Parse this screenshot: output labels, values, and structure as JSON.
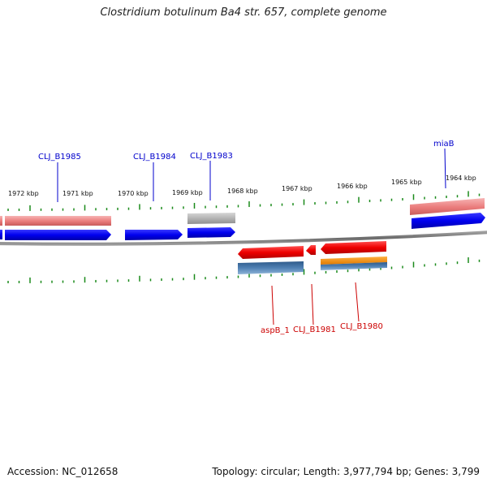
{
  "title": "Clostridium botulinum Ba4 str. 657, complete genome",
  "colors": {
    "label_top": "#0000cc",
    "label_bottom": "#cc0000",
    "tick": "#1a8a1a",
    "backbone": "#777777",
    "forward_cds": "#0000ee",
    "forward_pink": "#ee8080",
    "reverse_red": "#ee0000",
    "reverse_blue": "#4a78a8",
    "gray_feature": "#b0b0b0",
    "orange_feature": "#ff9900"
  },
  "kbp_labels": [
    "1972 kbp",
    "1971 kbp",
    "1970 kbp",
    "1969 kbp",
    "1968 kbp",
    "1967 kbp",
    "1966 kbp",
    "1965 kbp",
    "1964 kbp"
  ],
  "top_genes": [
    "CLJ_B1985",
    "CLJ_B1984",
    "CLJ_B1983",
    "miaB"
  ],
  "bottom_genes": [
    "aspB_1",
    "CLJ_B1981",
    "CLJ_B1980"
  ],
  "footer": {
    "accession": "Accession: NC_012658",
    "topology": "Topology: circular; Length: 3,977,794 bp; Genes: 3,799"
  }
}
